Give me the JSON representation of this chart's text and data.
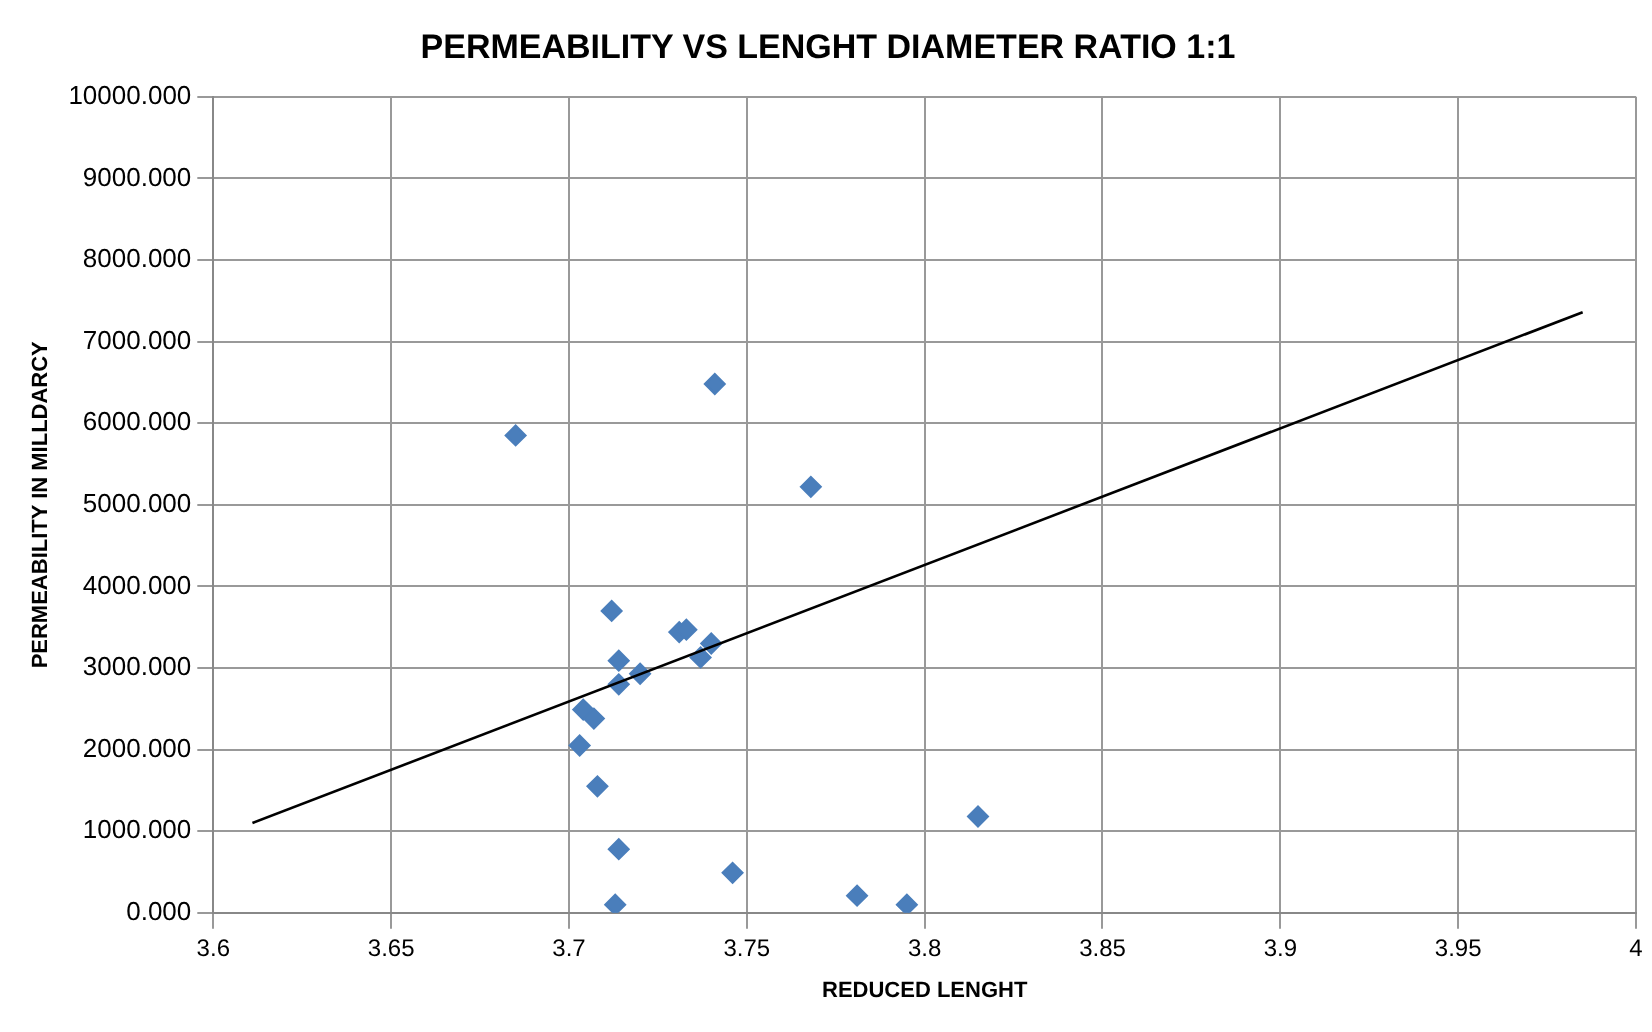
{
  "chart_data": {
    "type": "scatter",
    "title": "PERMEABILITY VS LENGHT DIAMETER RATIO 1:1",
    "xlabel": "REDUCED LENGHT",
    "ylabel": "PERMEABILITY IN MILLDARCY",
    "xlim": [
      3.6,
      4
    ],
    "xticks": [
      3.6,
      3.65,
      3.7,
      3.75,
      3.8,
      3.85,
      3.9,
      3.95,
      4
    ],
    "ylim": [
      0,
      10000
    ],
    "yticks": [
      {
        "value": 0,
        "label": "0.000"
      },
      {
        "value": 1000,
        "label": "1000.000"
      },
      {
        "value": 2000,
        "label": "2000.000"
      },
      {
        "value": 3000,
        "label": "3000.000"
      },
      {
        "value": 4000,
        "label": "4000.000"
      },
      {
        "value": 5000,
        "label": "5000.000"
      },
      {
        "value": 6000,
        "label": "6000.000"
      },
      {
        "value": 7000,
        "label": "7000.000"
      },
      {
        "value": 8000,
        "label": "8000.000"
      },
      {
        "value": 9000,
        "label": "9000.000"
      },
      {
        "value": 10000,
        "label": "10000.000"
      }
    ],
    "grid": true,
    "legend": false,
    "marker": "diamond",
    "series": [
      {
        "color": "#4a7ebb",
        "x": [
          3.685,
          3.741,
          3.768,
          3.712,
          3.731,
          3.733,
          3.74,
          3.737,
          3.714,
          3.72,
          3.714,
          3.704,
          3.707,
          3.703,
          3.708,
          3.714,
          3.713,
          3.746,
          3.781,
          3.795,
          3.815
        ],
        "values": [
          5850,
          6480,
          5220,
          3700,
          3440,
          3470,
          3300,
          3130,
          3090,
          2930,
          2800,
          2490,
          2380,
          2050,
          1550,
          780,
          100,
          490,
          210,
          100,
          1180
        ]
      },
      {
        "type": "line",
        "color": "#000000",
        "marker": "none",
        "line_style": "solid",
        "x": [
          3.611,
          3.985
        ],
        "values": [
          1100,
          7360
        ]
      }
    ]
  }
}
